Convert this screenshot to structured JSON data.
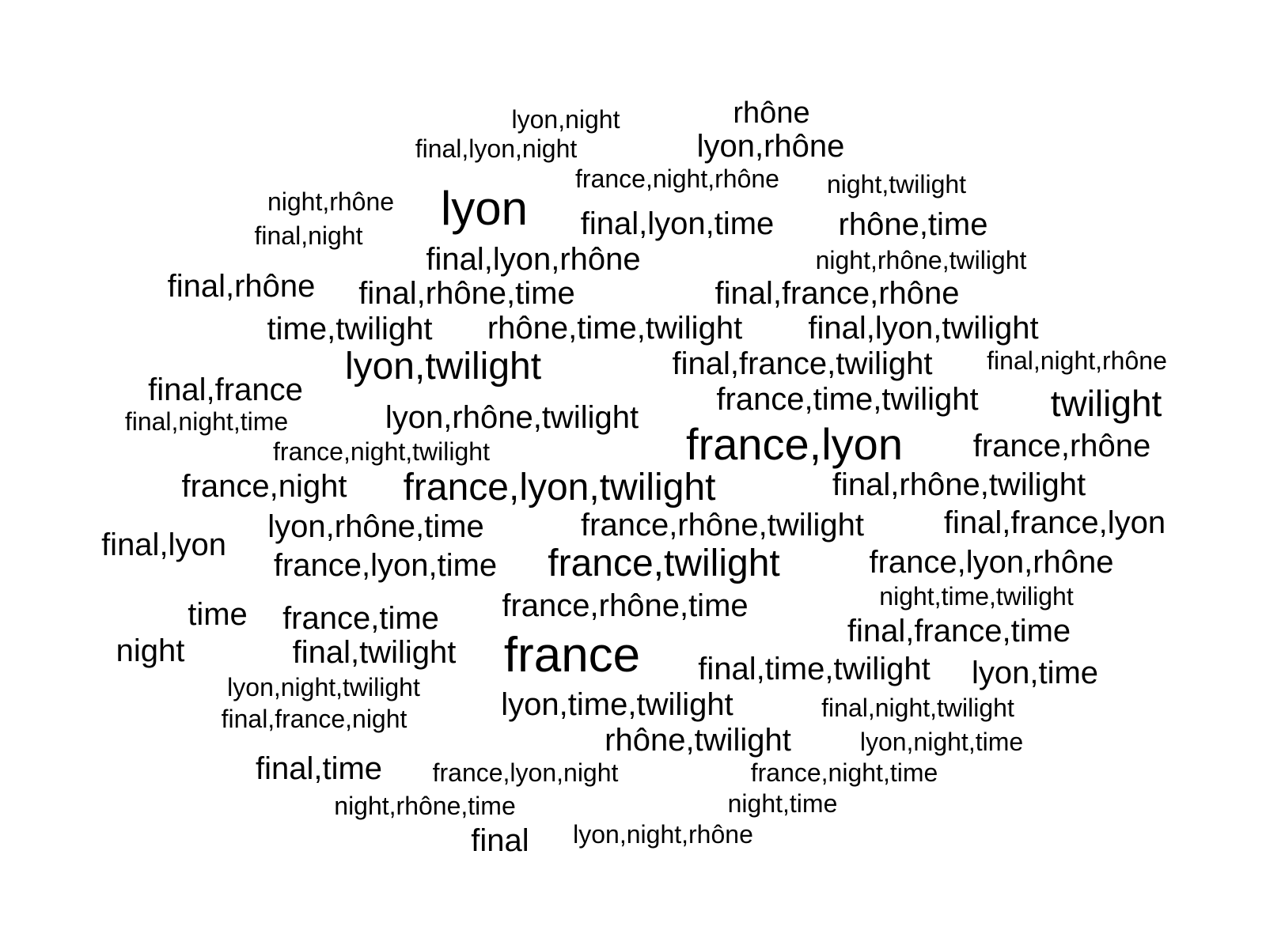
{
  "cloud": {
    "text_color": "#000000",
    "background": "#ffffff",
    "words": [
      "rhône",
      "lyon,night",
      "lyon,rhône",
      "final,lyon,night",
      "france,night,rhône",
      "night,twilight",
      "night,rhône",
      "lyon",
      "final,lyon,time",
      "rhône,time",
      "final,night",
      "final,lyon,rhône",
      "night,rhône,twilight",
      "final,rhône",
      "final,rhône,time",
      "final,france,rhône",
      "time,twilight",
      "rhône,time,twilight",
      "final,lyon,twilight",
      "lyon,twilight",
      "final,france,twilight",
      "final,night,rhône",
      "final,france",
      "france,time,twilight",
      "twilight",
      "final,night,time",
      "lyon,rhône,twilight",
      "france,lyon",
      "france,night,twilight",
      "france,rhône",
      "france,night",
      "france,lyon,twilight",
      "final,rhône,twilight",
      "lyon,rhône,time",
      "france,rhône,twilight",
      "final,france,lyon",
      "final,lyon",
      "france,lyon,time",
      "france,twilight",
      "france,lyon,rhône",
      "night,time,twilight",
      "time",
      "france,time",
      "france,rhône,time",
      "final,france,time",
      "night",
      "final,twilight",
      "france",
      "final,time,twilight",
      "lyon,time",
      "lyon,night,twilight",
      "lyon,time,twilight",
      "final,night,twilight",
      "final,france,night",
      "rhône,twilight",
      "lyon,night,time",
      "final,time",
      "france,lyon,night",
      "france,night,time",
      "night,rhône,time",
      "night,time",
      "final",
      "lyon,night,rhône"
    ]
  }
}
